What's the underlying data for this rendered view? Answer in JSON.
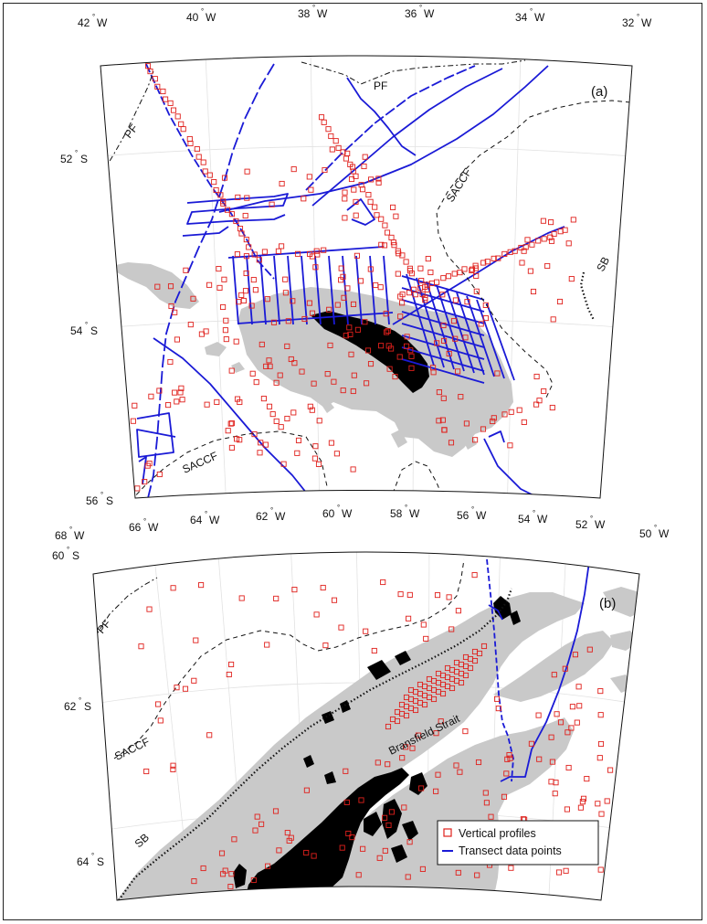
{
  "panels": [
    {
      "tag": "(a)",
      "lon_labels": [
        {
          "deg": "42",
          "dir": "W"
        },
        {
          "deg": "40",
          "dir": "W"
        },
        {
          "deg": "38",
          "dir": "W"
        },
        {
          "deg": "36",
          "dir": "W"
        },
        {
          "deg": "34",
          "dir": "W"
        },
        {
          "deg": "32",
          "dir": "W"
        }
      ],
      "lat_labels": [
        {
          "deg": "52",
          "dir": "S"
        },
        {
          "deg": "54",
          "dir": "S"
        },
        {
          "deg": "56",
          "dir": "S"
        }
      ],
      "fronts": [
        {
          "label": "PF"
        },
        {
          "label": "PF"
        },
        {
          "label": "SACCF"
        },
        {
          "label": "SACCF"
        },
        {
          "label": "SB"
        }
      ]
    },
    {
      "tag": "(b)",
      "lon_labels": [
        {
          "deg": "68",
          "dir": "W"
        },
        {
          "deg": "66",
          "dir": "W"
        },
        {
          "deg": "64",
          "dir": "W"
        },
        {
          "deg": "62",
          "dir": "W"
        },
        {
          "deg": "60",
          "dir": "W"
        },
        {
          "deg": "58",
          "dir": "W"
        },
        {
          "deg": "56",
          "dir": "W"
        },
        {
          "deg": "54",
          "dir": "W"
        },
        {
          "deg": "52",
          "dir": "W"
        },
        {
          "deg": "50",
          "dir": "W"
        }
      ],
      "lat_labels": [
        {
          "deg": "60",
          "dir": "S"
        },
        {
          "deg": "62",
          "dir": "S"
        },
        {
          "deg": "64",
          "dir": "S"
        }
      ],
      "fronts": [
        {
          "label": "PF"
        },
        {
          "label": "SACCF"
        },
        {
          "label": "SB"
        }
      ],
      "feature_label": "Bransfield Strait"
    }
  ],
  "legend": {
    "items": [
      {
        "label": "Vertical profiles",
        "marker": "open-square",
        "color": "#e0201c"
      },
      {
        "label": "Transect data points",
        "marker": "line",
        "color": "#1a1ad6"
      }
    ]
  },
  "colors": {
    "profile": "#e0201c",
    "transect": "#1a1ad6",
    "shelf": "#c9c9c9",
    "land": "#000000",
    "front": "#111111",
    "graticule": "#e2e2e2"
  }
}
